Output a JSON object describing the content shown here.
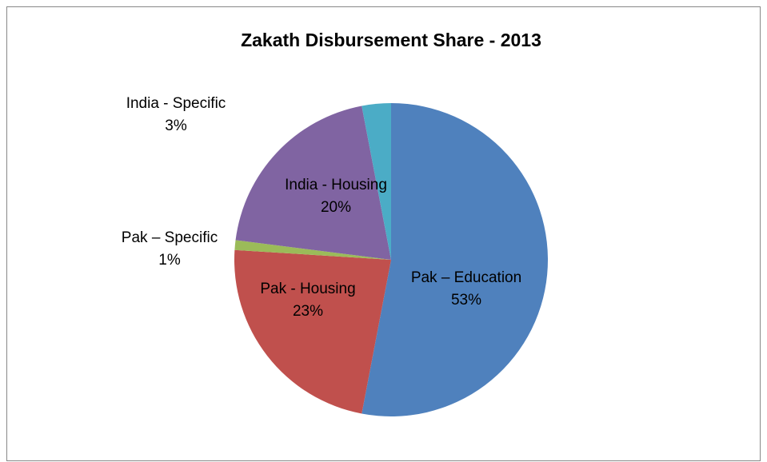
{
  "chart_data": {
    "type": "pie",
    "title": "Zakath Disbursement Share - 2013",
    "categories": [
      "Pak – Education",
      "Pak - Housing",
      "Pak – Specific",
      "India - Housing",
      "India - Specific"
    ],
    "values": [
      53,
      23,
      1,
      20,
      3
    ],
    "value_labels": [
      "53%",
      "23%",
      "1%",
      "20%",
      "3%"
    ],
    "colors": [
      "#4f81bd",
      "#c0504d",
      "#9bbb59",
      "#8064a2",
      "#4bacc6"
    ]
  }
}
